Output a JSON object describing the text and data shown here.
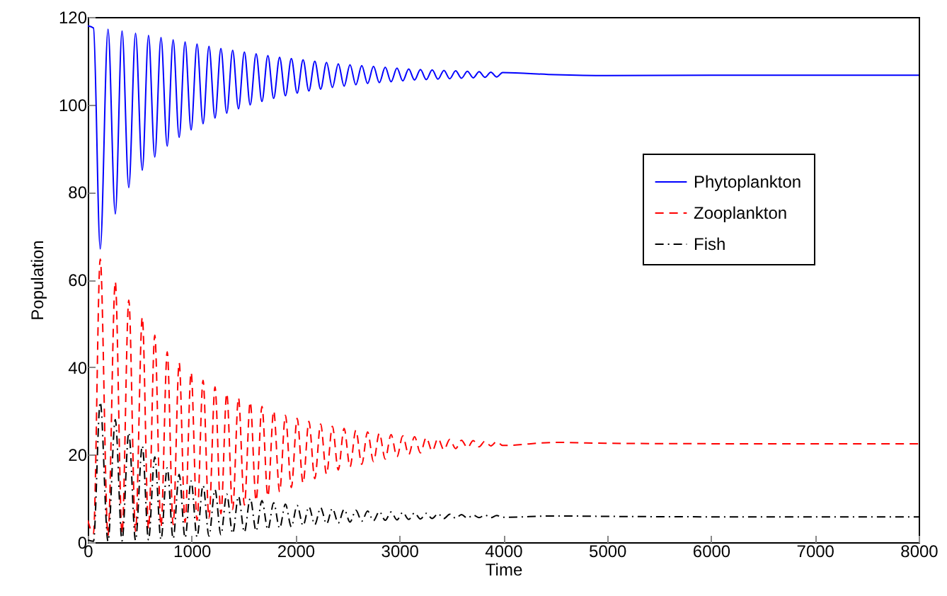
{
  "chart_data": {
    "type": "line",
    "xlabel": "Time",
    "ylabel": "Population",
    "xlim": [
      0,
      8000
    ],
    "ylim": [
      0,
      120
    ],
    "xticks": [
      0,
      1000,
      2000,
      3000,
      4000,
      5000,
      6000,
      7000,
      8000
    ],
    "yticks": [
      0,
      20,
      40,
      60,
      80,
      100,
      120
    ],
    "grid": false,
    "legend": "right",
    "marker": "none",
    "x": [
      0,
      55,
      120,
      195,
      265,
      330,
      395,
      460,
      525,
      585,
      645,
      705,
      765,
      822,
      880,
      937,
      995,
      1052,
      1110,
      1167,
      1225,
      1282,
      1338,
      1395,
      1451,
      1508,
      1564,
      1621,
      1677,
      1734,
      1790,
      1847,
      1903,
      1960,
      2016,
      2073,
      2129,
      2186,
      2242,
      2299,
      2355,
      2412,
      2468,
      2525,
      2581,
      2638,
      2694,
      2751,
      2807,
      2864,
      2920,
      2977,
      3033,
      3090,
      3146,
      3203,
      3259,
      3316,
      3372,
      3429,
      3485,
      3542,
      3598,
      3655,
      3711,
      3768,
      3824,
      3881,
      3937,
      3994,
      4500,
      5000,
      6000,
      7000,
      8000
    ],
    "series": [
      {
        "name": "Phytoplankton",
        "color": "#0000ff",
        "line_style": "solid",
        "values": [
          118,
          117.5,
          67,
          117.2,
          75,
          116.8,
          81,
          116.3,
          85,
          115.8,
          88,
          115.3,
          90.5,
          114.8,
          92.5,
          114.3,
          94.2,
          113.8,
          95.6,
          113.3,
          96.9,
          112.8,
          98,
          112.4,
          99,
          112,
          99.9,
          111.6,
          100.7,
          111.2,
          101.4,
          110.8,
          102,
          110.5,
          102.6,
          110.2,
          103.1,
          109.9,
          103.5,
          109.6,
          103.9,
          109.3,
          104.2,
          109.1,
          104.5,
          108.9,
          104.8,
          108.7,
          105,
          108.5,
          105.2,
          108.3,
          105.4,
          108.1,
          105.6,
          108,
          105.7,
          107.9,
          105.8,
          107.8,
          105.9,
          107.7,
          106,
          107.6,
          106.1,
          107.5,
          106.2,
          107.4,
          106.3,
          107.3,
          106.8,
          106.6,
          106.7,
          106.7,
          106.7
        ]
      },
      {
        "name": "Zooplankton",
        "color": "#ff0000",
        "line_style": "dashed",
        "values": [
          5,
          2,
          64.7,
          1.5,
          59.5,
          2,
          55.3,
          2.5,
          51.4,
          3,
          47.3,
          3.5,
          43.5,
          4,
          41,
          4.5,
          38.8,
          5,
          37,
          5.5,
          35.5,
          6.5,
          34,
          7.5,
          33,
          8.5,
          32,
          9.5,
          31,
          10.5,
          30,
          11.5,
          29,
          12.5,
          28.3,
          13.5,
          27.6,
          14.5,
          27,
          15.5,
          26.5,
          16.5,
          26,
          17.2,
          25.6,
          17.8,
          25.2,
          18.4,
          24.9,
          19,
          24.6,
          19.5,
          24.3,
          20,
          24.1,
          20.4,
          23.9,
          20.8,
          23.7,
          21.1,
          23.5,
          21.4,
          23.3,
          21.6,
          23.2,
          21.8,
          23.1,
          22,
          23,
          22.1,
          22.8,
          22.6,
          22.5,
          22.5,
          22.5
        ]
      },
      {
        "name": "Fish",
        "color": "#000000",
        "line_style": "dashdot",
        "values": [
          0.5,
          0.2,
          32,
          0.2,
          28,
          0.3,
          25,
          0.4,
          22,
          0.5,
          19.5,
          0.6,
          17,
          0.8,
          15.5,
          1,
          14,
          1.2,
          13,
          1.4,
          12,
          1.7,
          11,
          2,
          10.5,
          2.3,
          10,
          2.6,
          9.5,
          2.9,
          9,
          3.2,
          8.7,
          3.5,
          8.4,
          3.8,
          8.1,
          4,
          7.9,
          4.2,
          7.7,
          4.4,
          7.5,
          4.6,
          7.3,
          4.8,
          7.1,
          4.9,
          7,
          5,
          6.9,
          5.1,
          6.8,
          5.2,
          6.7,
          5.3,
          6.6,
          5.4,
          6.5,
          5.4,
          6.4,
          5.5,
          6.3,
          5.5,
          6.2,
          5.6,
          6.2,
          5.6,
          6.1,
          5.7,
          6,
          5.9,
          5.8,
          5.8,
          5.8
        ]
      }
    ]
  }
}
